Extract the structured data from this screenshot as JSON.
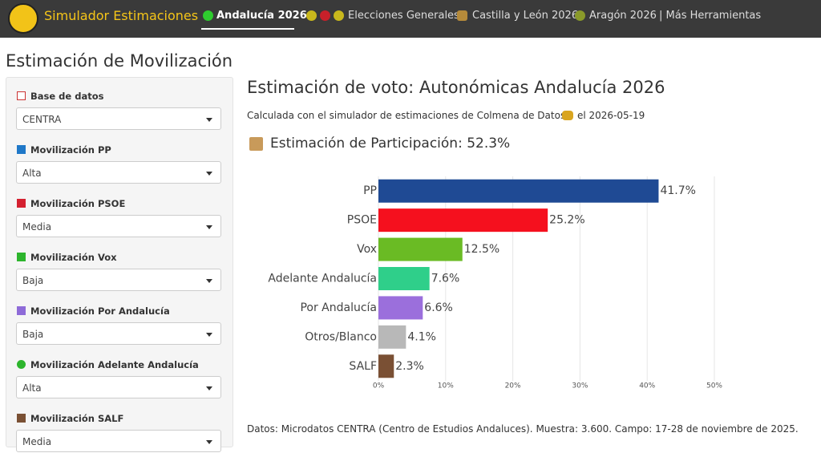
{
  "nav": {
    "brand": "Simulador Estimaciones",
    "items": [
      "Andalucía 2026",
      "Elecciones Generales",
      "Castilla y León 2026",
      "Aragón 2026",
      "| Más Herramientas"
    ]
  },
  "sidebar": {
    "title": "Estimación de Movilización",
    "fields": [
      {
        "label": "Base de datos",
        "value": "CENTRA"
      },
      {
        "label": "Movilización PP",
        "value": "Alta"
      },
      {
        "label": "Movilización PSOE",
        "value": "Media"
      },
      {
        "label": "Movilización Vox",
        "value": "Baja"
      },
      {
        "label": "Movilización Por Andalucía",
        "value": "Baja"
      },
      {
        "label": "Movilización Adelante Andalucía",
        "value": "Alta"
      },
      {
        "label": "Movilización SALF",
        "value": "Media"
      }
    ]
  },
  "main": {
    "title": "Estimación de voto: Autonómicas Andalucía 2026",
    "subtitle_start": "Calculada con el simulador de estimaciones de Colmena de Datos",
    "subtitle_end": "el 2026-05-19",
    "participation": "Estimación de Participación: 52.3%",
    "footer": "Datos: Microdatos CENTRA (Centro de Estudios Andaluces). Muestra: 3.600. Campo: 17-28 de noviembre de 2025."
  },
  "chart_data": {
    "type": "hbar",
    "categories": [
      "PP",
      "PSOE",
      "Vox",
      "Adelante Andalucía",
      "Por Andalucía",
      "Otros/Blanco",
      "SALF"
    ],
    "values": [
      41.7,
      25.2,
      12.5,
      7.6,
      6.6,
      4.1,
      2.3
    ],
    "value_labels": [
      "41.7%",
      "25.2%",
      "12.5%",
      "7.6%",
      "6.6%",
      "4.1%",
      "2.3%"
    ],
    "colors": [
      "#1f4a94",
      "#f5101e",
      "#6abb24",
      "#2fcf8a",
      "#9b6fdc",
      "#b8b8b8",
      "#7a5034"
    ],
    "xlim": [
      0,
      52
    ],
    "xticks": [
      {
        "value": 0,
        "label": "0%"
      },
      {
        "value": 10,
        "label": "10%"
      },
      {
        "value": 20,
        "label": "20%"
      },
      {
        "value": 30,
        "label": "30%"
      },
      {
        "value": 40,
        "label": "40%"
      },
      {
        "value": 50,
        "label": "50%"
      }
    ],
    "grid": true
  }
}
